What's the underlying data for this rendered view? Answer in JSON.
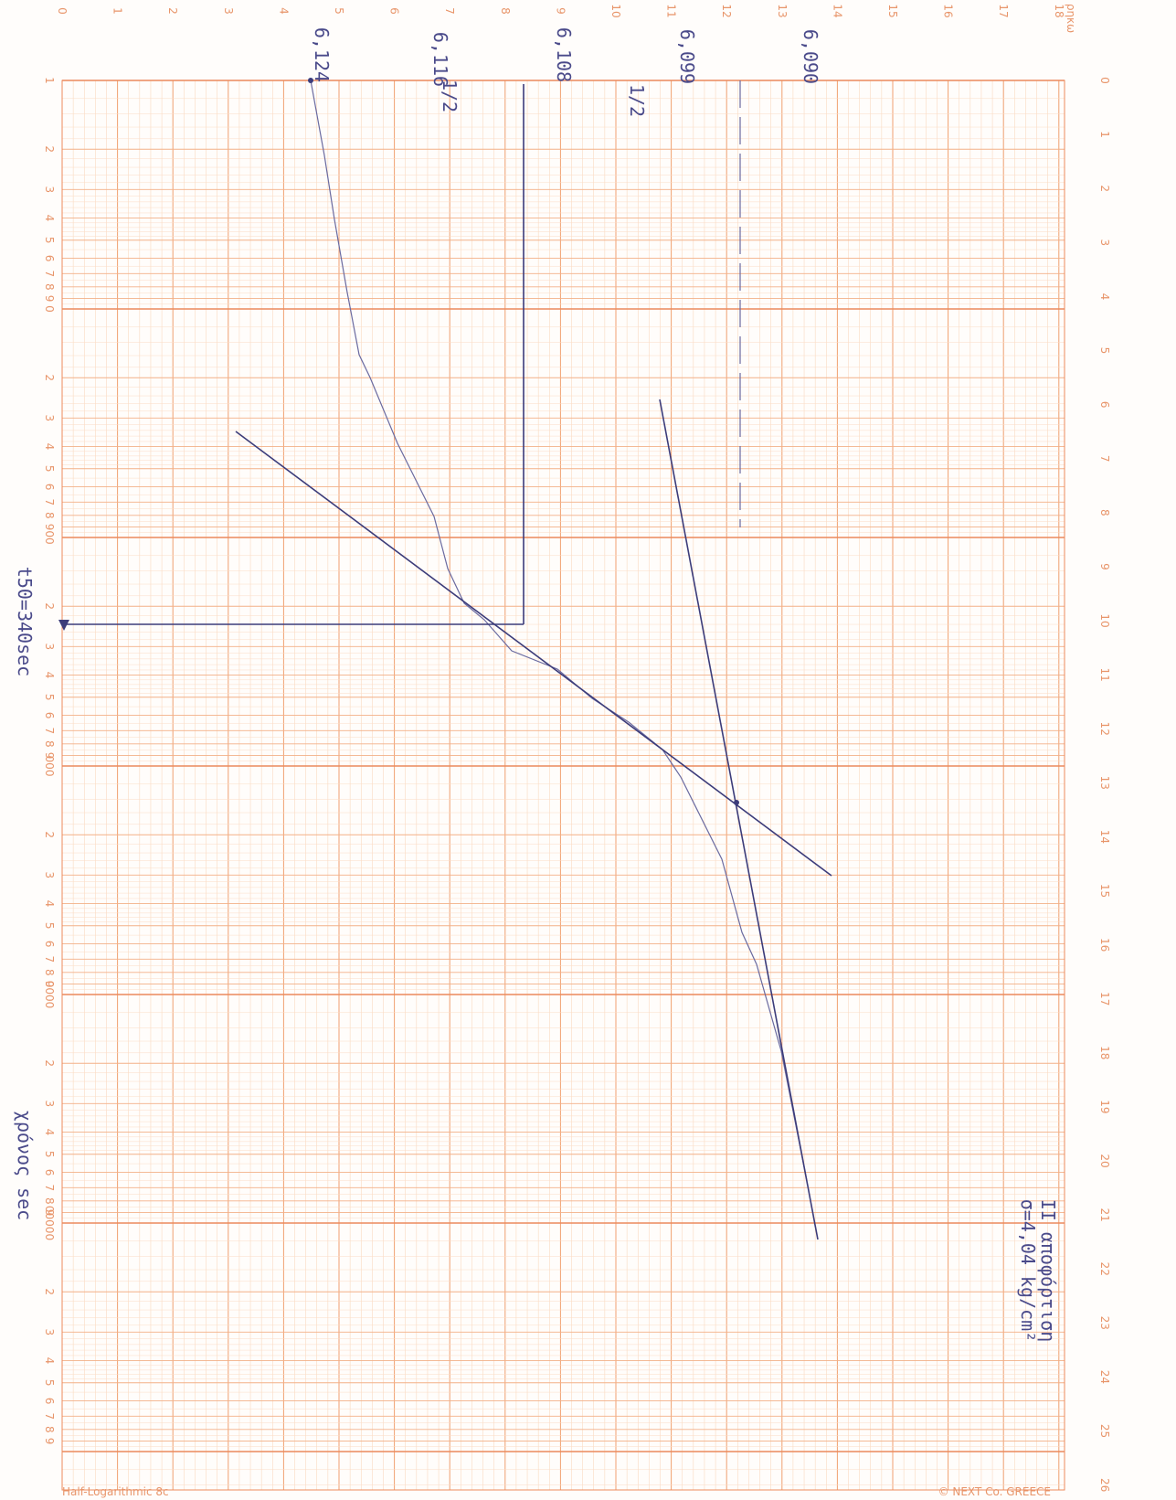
{
  "top_unit": "ρηκω",
  "top_ticks": [
    "0",
    "1",
    "2",
    "3",
    "4",
    "5",
    "6",
    "7",
    "8",
    "9",
    "10",
    "11",
    "12",
    "13",
    "14",
    "15",
    "16",
    "17",
    "18"
  ],
  "right_ticks": [
    "0",
    "1",
    "2",
    "3",
    "4",
    "5",
    "6",
    "7",
    "8",
    "9",
    "10",
    "11",
    "12",
    "13",
    "14",
    "15",
    "16",
    "17",
    "18",
    "19",
    "20",
    "21",
    "22",
    "23",
    "24",
    "25",
    "26"
  ],
  "log_start": "1",
  "log_digits": [
    "2",
    "3",
    "4",
    "5",
    "6",
    "7",
    "8",
    "9"
  ],
  "log_decades": [
    "0",
    "00",
    "000",
    "0000",
    "00000"
  ],
  "readings": [
    "6,124",
    "6,116",
    "6,108",
    "6,099",
    "6,090"
  ],
  "half": [
    "1/2",
    "1/2"
  ],
  "t50": "t50=340sec",
  "time_axis": "χρόνος sec",
  "note": [
    "II αποφόρτιση",
    "σ=4,04 kg/cm²"
  ],
  "paper": "Half-Logarithmic 8c",
  "publisher": "© NEXT Co. GREECE"
}
